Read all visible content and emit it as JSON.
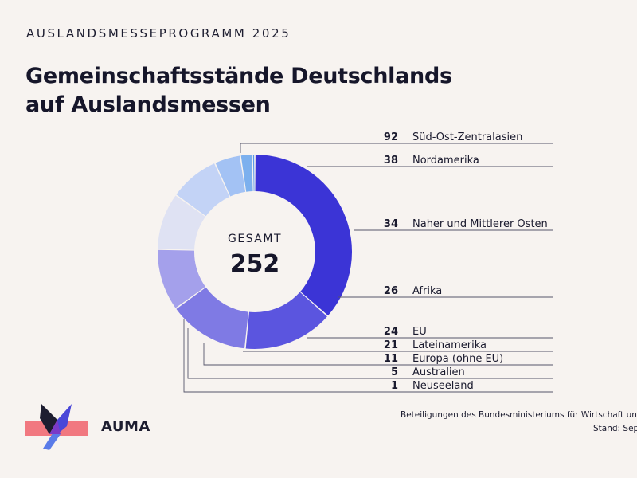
{
  "header": {
    "kicker": "AUSLANDSMESSEPROGRAMM 2025",
    "title_line1": "Gemeinschaftsstände Deutschlands",
    "title_line2": "auf Auslandsmessen"
  },
  "center": {
    "caption": "GESAMT",
    "total": "252"
  },
  "chart_data": {
    "type": "donut",
    "title": "Gemeinschaftsstände Deutschlands auf Auslandsmessen",
    "total": 252,
    "categories": [
      "Süd-Ost-Zentralasien",
      "Nordamerika",
      "Naher und Mittlerer Osten",
      "Afrika",
      "EU",
      "Lateinamerika",
      "Europa (ohne EU)",
      "Australien",
      "Neuseeland"
    ],
    "values": [
      92,
      38,
      34,
      26,
      24,
      21,
      11,
      5,
      1
    ],
    "colors": [
      "#3b34d6",
      "#5b55df",
      "#7f7ae4",
      "#a4a0eb",
      "#dfe2f3",
      "#c3d3f6",
      "#a3c2f4",
      "#7cb0ee",
      "#5a9ae8"
    ]
  },
  "brand": {
    "name": "AUMA"
  },
  "footer": {
    "source": "Beteiligungen des Bundesministeriums für Wirtschaft und",
    "stand": "Stand: Sept"
  }
}
